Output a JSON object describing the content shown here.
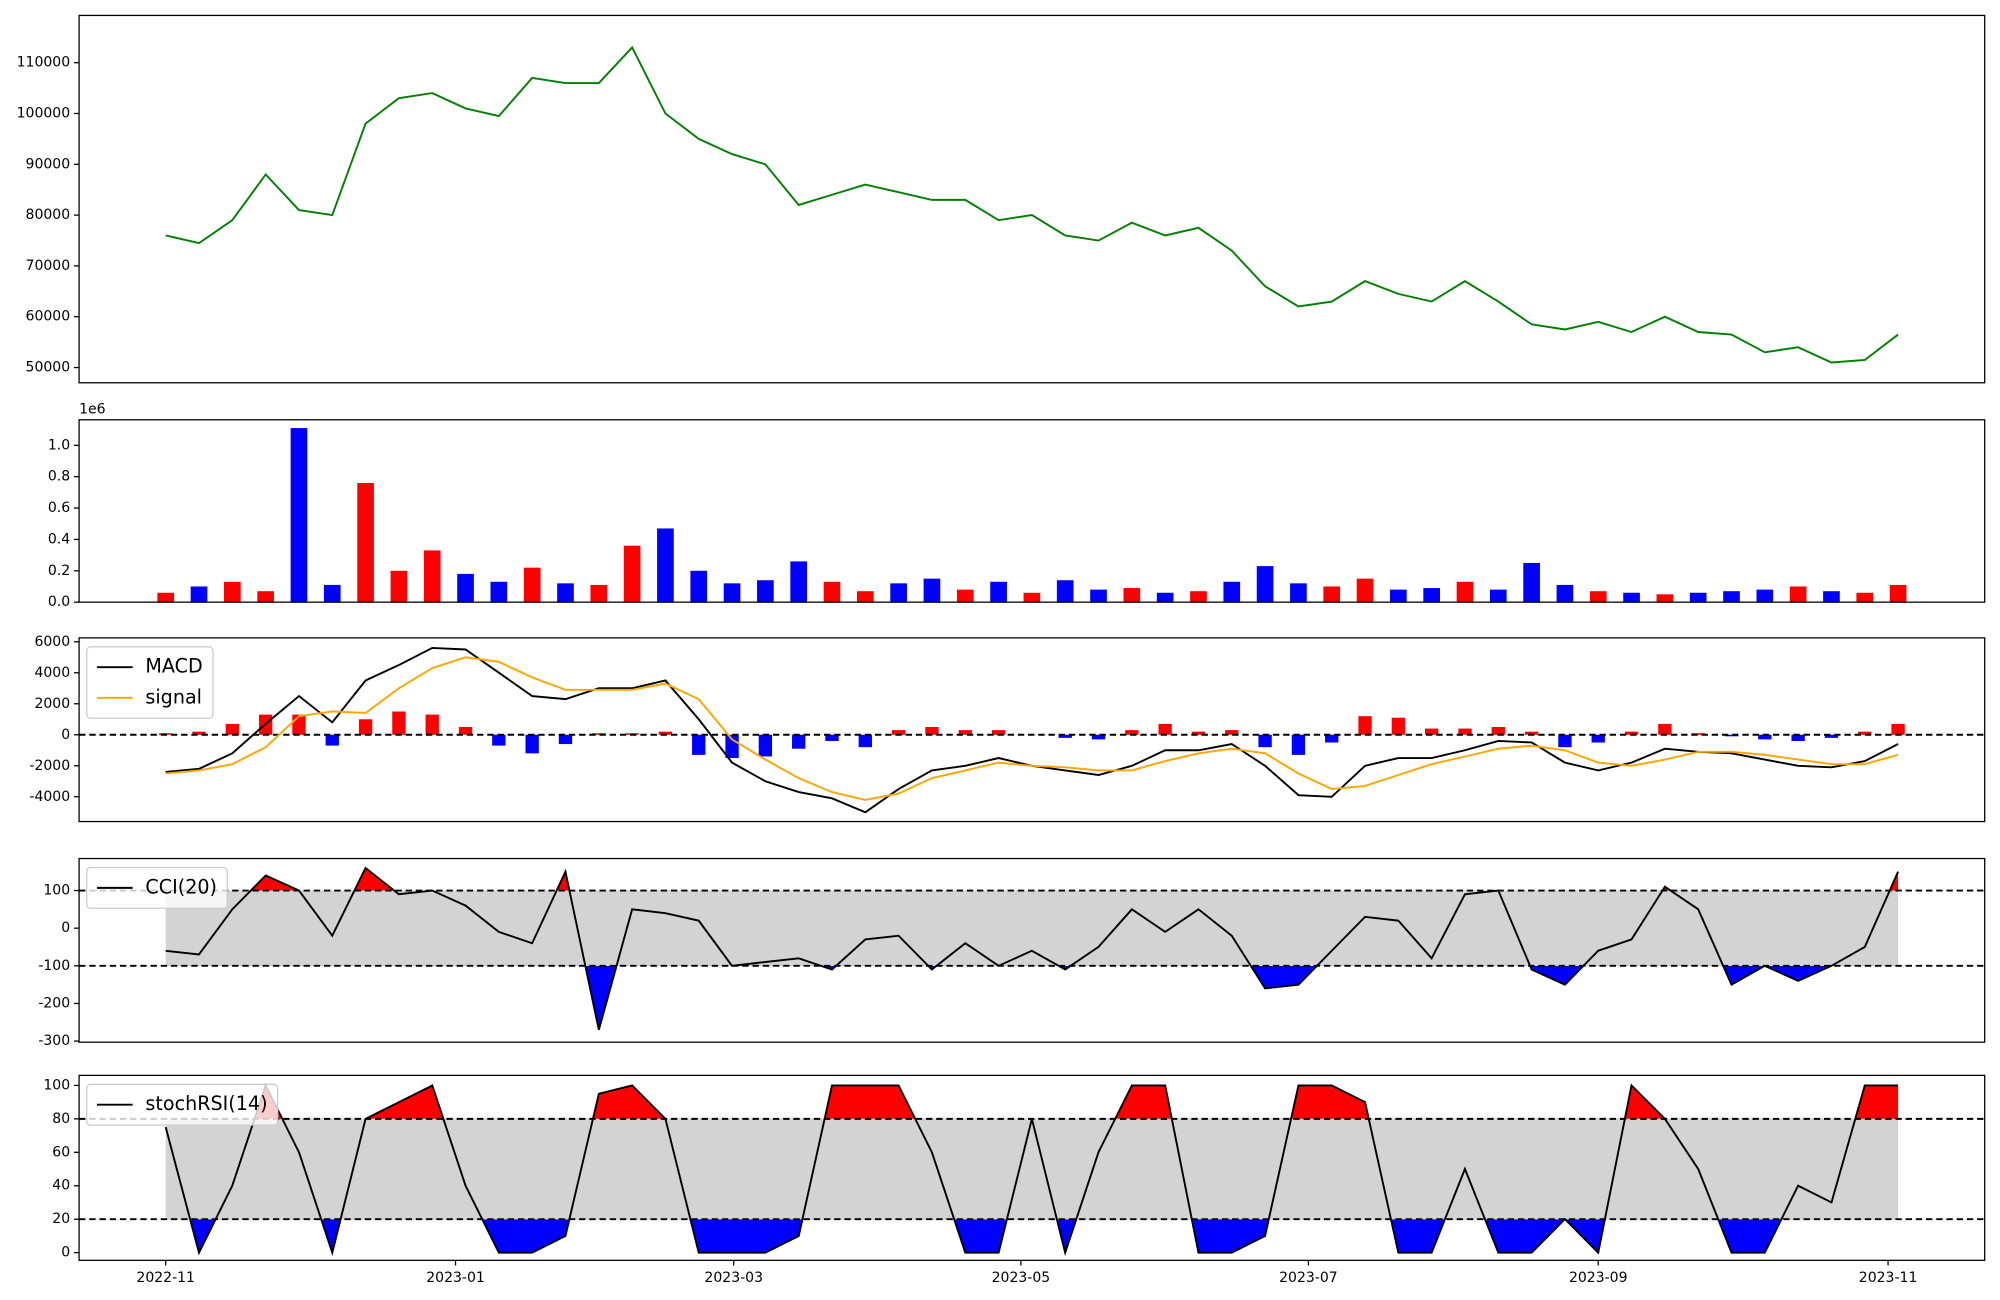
{
  "chart_data": [
    {
      "type": "line",
      "series": [
        {
          "color": "#008000",
          "values": [
            76000,
            74500,
            79000,
            88000,
            81000,
            80000,
            98000,
            103000,
            104000,
            101000,
            99500,
            107000,
            106000,
            106000,
            113000,
            100000,
            95000,
            92000,
            90000,
            82000,
            84000,
            86000,
            84500,
            83000,
            83000,
            79000,
            80000,
            76000,
            75000,
            78500,
            76000,
            77500,
            73000,
            66000,
            62000,
            63000,
            67000,
            64500,
            63000,
            67000,
            63000,
            58500,
            57500,
            59000,
            57000,
            60000,
            57000,
            56500,
            53000,
            54000,
            51000,
            51500,
            56500
          ]
        }
      ],
      "ylim": [
        47000,
        119300
      ],
      "yticks": [
        50000,
        60000,
        70000,
        80000,
        90000,
        100000,
        110000
      ],
      "xlim": [
        -2.6,
        54.6
      ]
    },
    {
      "type": "bar",
      "values": [
        60000,
        100000,
        130000,
        70000,
        1110000,
        110000,
        760000,
        200000,
        330000,
        180000,
        130000,
        220000,
        120000,
        110000,
        360000,
        470000,
        200000,
        120000,
        140000,
        260000,
        130000,
        70000,
        120000,
        150000,
        80000,
        130000,
        60000,
        140000,
        80000,
        90000,
        60000,
        70000,
        130000,
        230000,
        120000,
        100000,
        150000,
        80000,
        90000,
        130000,
        80000,
        250000,
        110000,
        70000,
        60000,
        50000,
        60000,
        70000,
        80000,
        100000,
        70000,
        60000,
        110000
      ],
      "colors": [
        "#ff0000",
        "#0000ff",
        "#ff0000",
        "#ff0000",
        "#0000ff",
        "#0000ff",
        "#ff0000",
        "#ff0000",
        "#ff0000",
        "#0000ff",
        "#0000ff",
        "#ff0000",
        "#0000ff",
        "#ff0000",
        "#ff0000",
        "#0000ff",
        "#0000ff",
        "#0000ff",
        "#0000ff",
        "#0000ff",
        "#ff0000",
        "#ff0000",
        "#0000ff",
        "#0000ff",
        "#ff0000",
        "#0000ff",
        "#ff0000",
        "#0000ff",
        "#0000ff",
        "#ff0000",
        "#0000ff",
        "#ff0000",
        "#0000ff",
        "#0000ff",
        "#0000ff",
        "#ff0000",
        "#ff0000",
        "#0000ff",
        "#0000ff",
        "#ff0000",
        "#0000ff",
        "#0000ff",
        "#0000ff",
        "#ff0000",
        "#0000ff",
        "#ff0000",
        "#0000ff",
        "#0000ff",
        "#0000ff",
        "#ff0000",
        "#0000ff",
        "#ff0000",
        "#ff0000"
      ],
      "ylim": [
        0,
        1163000
      ],
      "yticks": [
        {
          "value": 0,
          "label": "0.0"
        },
        {
          "value": 200000,
          "label": "0.2"
        },
        {
          "value": 400000,
          "label": "0.4"
        },
        {
          "value": 600000,
          "label": "0.6"
        },
        {
          "value": 800000,
          "label": "0.8"
        },
        {
          "value": 1000000,
          "label": "1.0"
        }
      ],
      "offset_label": "1e6",
      "xlim": [
        -2.6,
        54.6
      ]
    },
    {
      "type": "macd",
      "series": [
        {
          "name": "MACD",
          "color": "#000000",
          "values": [
            -2400,
            -2200,
            -1200,
            700,
            2500,
            800,
            3500,
            4500,
            5600,
            5500,
            4000,
            2500,
            2300,
            3000,
            3000,
            3500,
            1000,
            -1800,
            -3000,
            -3700,
            -4100,
            -5000,
            -3500,
            -2300,
            -2000,
            -1500,
            -2000,
            -2300,
            -2600,
            -2000,
            -1000,
            -1000,
            -600,
            -2000,
            -3900,
            -4000,
            -2000,
            -1500,
            -1500,
            -1000,
            -400,
            -500,
            -1800,
            -2300,
            -1800,
            -900,
            -1100,
            -1200,
            -1600,
            -2000,
            -2100,
            -1700,
            -600
          ]
        },
        {
          "name": "signal",
          "color": "#ffa500",
          "values": [
            -2500,
            -2300,
            -1900,
            -800,
            1200,
            1500,
            1400,
            3000,
            4300,
            5000,
            4700,
            3700,
            2900,
            2900,
            2900,
            3300,
            2300,
            -300,
            -1600,
            -2800,
            -3700,
            -4200,
            -3800,
            -2800,
            -2300,
            -1800,
            -2000,
            -2100,
            -2300,
            -2300,
            -1700,
            -1200,
            -900,
            -1200,
            -2500,
            -3500,
            -3300,
            -2600,
            -1900,
            -1400,
            -900,
            -700,
            -1000,
            -1800,
            -2000,
            -1600,
            -1100,
            -1100,
            -1300,
            -1600,
            -1900,
            -1900,
            -1300
          ]
        }
      ],
      "histogram": {
        "values": [
          100,
          200,
          700,
          1300,
          1300,
          -700,
          1000,
          1500,
          1300,
          500,
          -700,
          -1200,
          -600,
          100,
          100,
          200,
          -1300,
          -1500,
          -1400,
          -900,
          -400,
          -800,
          300,
          500,
          300,
          300,
          0,
          -200,
          -300,
          300,
          700,
          200,
          300,
          -800,
          -1300,
          -500,
          1200,
          1100,
          400,
          400,
          500,
          200,
          -800,
          -500,
          200,
          700,
          100,
          -100,
          -300,
          -400,
          -200,
          200,
          700
        ],
        "pos_color": "#ff0000",
        "neg_color": "#0000ff"
      },
      "hline": 0,
      "ylim": [
        -5600,
        6250
      ],
      "yticks": [
        -4000,
        -2000,
        0,
        2000,
        4000,
        6000
      ],
      "legend": "upper left",
      "xlim": [
        -2.6,
        54.6
      ]
    },
    {
      "type": "band",
      "series": [
        {
          "name": "CCI(20)",
          "color": "#000000",
          "values": [
            -60,
            -70,
            50,
            140,
            100,
            -20,
            160,
            90,
            100,
            60,
            -10,
            -40,
            150,
            -270,
            50,
            40,
            20,
            -100,
            -90,
            -80,
            -110,
            -30,
            -20,
            -110,
            -40,
            -100,
            -60,
            -110,
            -50,
            50,
            -10,
            50,
            -20,
            -160,
            -150,
            -60,
            30,
            20,
            -80,
            90,
            100,
            -110,
            -150,
            -60,
            -30,
            110,
            50,
            -150,
            -100,
            -140,
            -100,
            -50,
            150
          ]
        }
      ],
      "upper": 100,
      "lower": -100,
      "band_color": "#d3d3d3",
      "above_color": "#ff0000",
      "below_color": "#0000ff",
      "ylim": [
        -303,
        185
      ],
      "yticks": [
        -300,
        -200,
        -100,
        0,
        100
      ],
      "legend": "upper left",
      "xlim": [
        -2.6,
        54.6
      ]
    },
    {
      "type": "band",
      "series": [
        {
          "name": "stochRSI(14)",
          "color": "#000000",
          "values": [
            75,
            0,
            40,
            100,
            60,
            0,
            80,
            90,
            100,
            40,
            0,
            0,
            10,
            95,
            100,
            80,
            0,
            0,
            0,
            10,
            100,
            100,
            100,
            60,
            0,
            0,
            80,
            0,
            60,
            100,
            100,
            0,
            0,
            10,
            100,
            100,
            90,
            0,
            0,
            50,
            0,
            0,
            20,
            0,
            100,
            80,
            50,
            0,
            0,
            40,
            30,
            100,
            100
          ]
        }
      ],
      "upper": 80,
      "lower": 20,
      "band_color": "#d3d3d3",
      "above_color": "#ff0000",
      "below_color": "#0000ff",
      "ylim": [
        -4.6,
        106
      ],
      "yticks": [
        0,
        20,
        40,
        60,
        80,
        100
      ],
      "legend": "upper left",
      "xlim": [
        -2.6,
        54.6
      ],
      "xticks": [
        {
          "value": 0,
          "label": "2022-11"
        },
        {
          "value": 8.7,
          "label": "2023-01"
        },
        {
          "value": 17.05,
          "label": "2023-03"
        },
        {
          "value": 25.67,
          "label": "2023-05"
        },
        {
          "value": 34.3,
          "label": "2023-07"
        },
        {
          "value": 43.0,
          "label": "2023-09"
        },
        {
          "value": 51.7,
          "label": "2023-11"
        }
      ]
    }
  ]
}
